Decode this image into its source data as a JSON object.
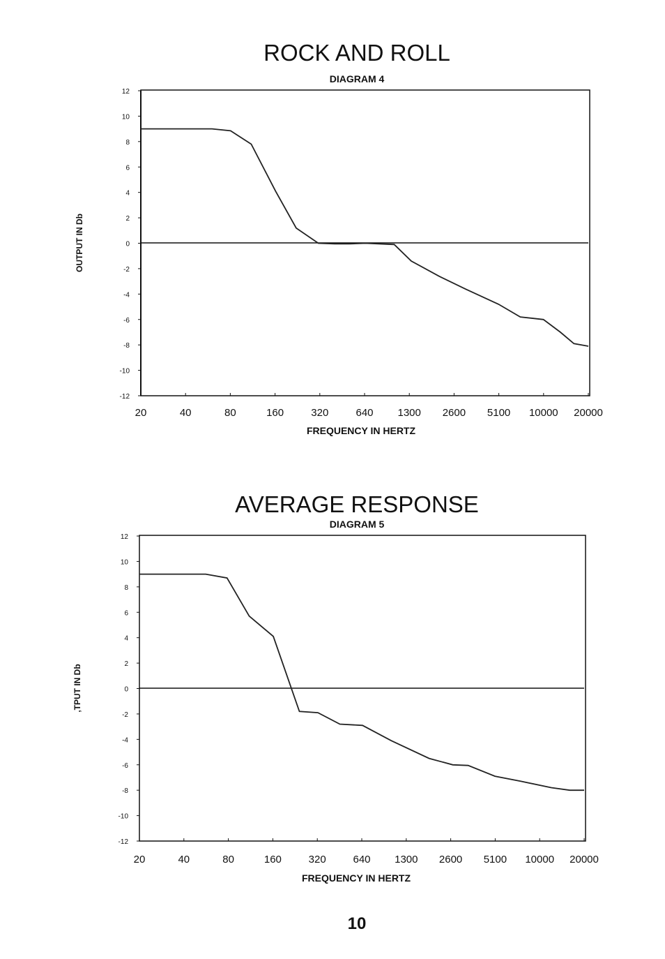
{
  "page": {
    "number": "10"
  },
  "charts": [
    {
      "title": "ROCK AND ROLL",
      "subtitle": "DIAGRAM 4",
      "xlabel": "FREQUENCY IN HERTZ",
      "ylabel": "OUTPUT IN Db"
    },
    {
      "title": "AVERAGE RESPONSE",
      "subtitle": "DIAGRAM 5",
      "xlabel": "FREQUENCY IN HERTZ",
      "ylabel": ",TPUT IN Db"
    }
  ],
  "chart_data": [
    {
      "type": "line",
      "title": "ROCK AND ROLL",
      "subtitle": "DIAGRAM 4",
      "xlabel": "FREQUENCY IN HERTZ",
      "ylabel": "OUTPUT IN Db",
      "x_tick_labels": [
        "20",
        "40",
        "80",
        "160",
        "320",
        "640",
        "1300",
        "2600",
        "5100",
        "10000",
        "20000"
      ],
      "y_ticks": [
        12,
        10,
        8,
        6,
        4,
        2,
        0,
        -2,
        -4,
        -6,
        -8,
        -10,
        -12
      ],
      "y_tick_labels": [
        "12",
        "10",
        "8",
        "6",
        "4",
        "2",
        "0",
        "-2",
        "-4",
        "-6",
        "-8",
        "-10",
        "-12"
      ],
      "ylim": [
        -12,
        12
      ],
      "grid": false,
      "series": [
        {
          "x": [
            20,
            60,
            80,
            110,
            160,
            220,
            310,
            400,
            500,
            640,
            1000,
            1300,
            2000,
            3000,
            5000,
            7000,
            10000,
            13000,
            16000,
            20000
          ],
          "y": [
            9,
            9,
            8.85,
            7.8,
            4.1,
            1.2,
            0,
            -0.05,
            -0.05,
            0,
            -0.1,
            -1.4,
            -2.6,
            -3.6,
            -4.8,
            -5.8,
            -6,
            -7,
            -7.9,
            -8.1
          ]
        }
      ]
    },
    {
      "type": "line",
      "title": "AVERAGE RESPONSE",
      "subtitle": "DIAGRAM 5",
      "xlabel": "FREQUENCY IN HERTZ",
      "ylabel": ",TPUT IN Db",
      "x_tick_labels": [
        "20",
        "40",
        "80",
        "160",
        "320",
        "640",
        "1300",
        "2600",
        "5100",
        "10000",
        "20000"
      ],
      "y_ticks": [
        12,
        10,
        8,
        6,
        4,
        2,
        0,
        -2,
        -4,
        -6,
        -8,
        -10,
        -12
      ],
      "y_tick_labels": [
        "12",
        "10",
        "8",
        "6",
        "4",
        "2",
        "0",
        "-2",
        "-4",
        "-6",
        "-8",
        "-10",
        "-12"
      ],
      "ylim": [
        -12,
        12
      ],
      "grid": false,
      "series": [
        {
          "x": [
            20,
            56,
            78,
            110,
            160,
            240,
            320,
            450,
            640,
            1000,
            1800,
            2600,
            3300,
            5000,
            7500,
            12000,
            16000,
            20000
          ],
          "y": [
            9,
            9,
            8.7,
            5.7,
            4.1,
            -1.8,
            -1.9,
            -2.8,
            -2.9,
            -4.1,
            -5.5,
            -6,
            -6.05,
            -6.9,
            -7.3,
            -7.8,
            -8,
            -8
          ]
        }
      ]
    }
  ]
}
